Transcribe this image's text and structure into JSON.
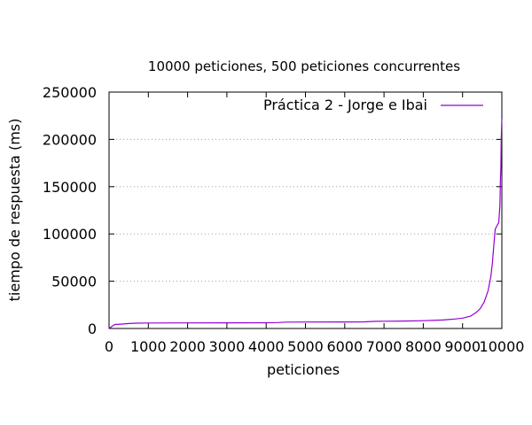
{
  "chart_data": {
    "type": "line",
    "title": "10000 peticiones, 500 peticiones concurrentes",
    "xlabel": "peticiones",
    "ylabel": "tiempo de respuesta (ms)",
    "xlim": [
      0,
      10000
    ],
    "ylim": [
      0,
      250000
    ],
    "x_ticks": [
      0,
      1000,
      2000,
      3000,
      4000,
      5000,
      6000,
      7000,
      8000,
      9000,
      10000
    ],
    "y_ticks": [
      0,
      50000,
      100000,
      150000,
      200000,
      250000
    ],
    "grid": "horizontal dotted",
    "legend_position": "top-right",
    "series": [
      {
        "name": "Práctica 2 - Jorge e Ibai",
        "color": "#9400d3",
        "points": [
          [
            0,
            0
          ],
          [
            50,
            1500
          ],
          [
            100,
            3000
          ],
          [
            150,
            4200
          ],
          [
            300,
            4600
          ],
          [
            500,
            5200
          ],
          [
            700,
            5600
          ],
          [
            1000,
            5800
          ],
          [
            2000,
            5900
          ],
          [
            3000,
            6000
          ],
          [
            4000,
            6100
          ],
          [
            4300,
            6300
          ],
          [
            4500,
            6700
          ],
          [
            5000,
            6800
          ],
          [
            6000,
            6900
          ],
          [
            6500,
            7000
          ],
          [
            6800,
            7600
          ],
          [
            7000,
            7700
          ],
          [
            7500,
            7900
          ],
          [
            8000,
            8200
          ],
          [
            8500,
            9000
          ],
          [
            8800,
            10000
          ],
          [
            9000,
            11000
          ],
          [
            9200,
            13000
          ],
          [
            9350,
            17000
          ],
          [
            9450,
            21000
          ],
          [
            9550,
            28000
          ],
          [
            9650,
            40000
          ],
          [
            9720,
            55000
          ],
          [
            9760,
            70000
          ],
          [
            9800,
            90000
          ],
          [
            9830,
            105000
          ],
          [
            9880,
            109000
          ],
          [
            9920,
            112000
          ],
          [
            9950,
            130000
          ],
          [
            9965,
            158000
          ],
          [
            9975,
            170000
          ],
          [
            9985,
            200000
          ],
          [
            10000,
            222000
          ]
        ]
      }
    ]
  }
}
